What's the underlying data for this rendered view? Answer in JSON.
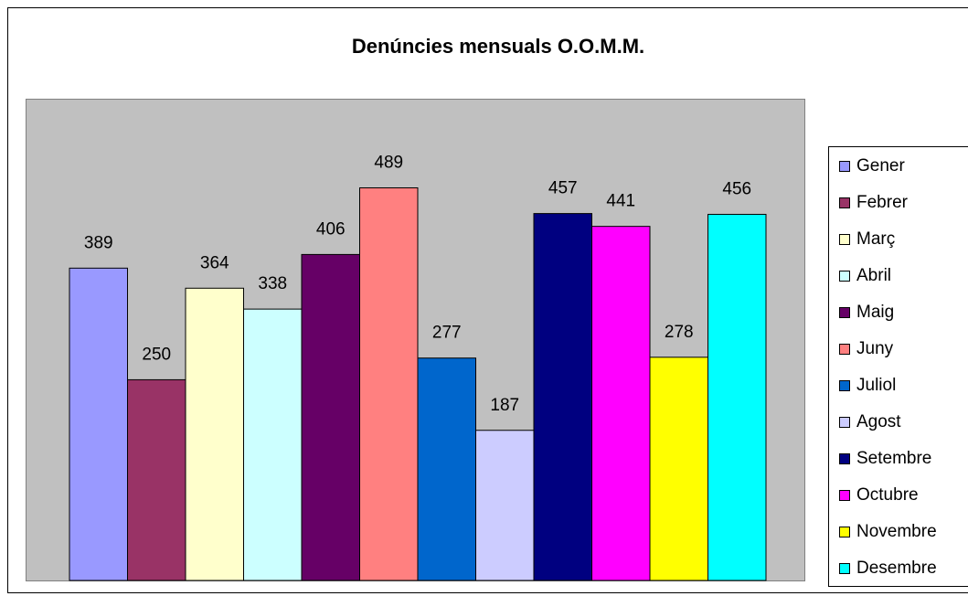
{
  "chart_data": {
    "type": "bar",
    "title": "Denúncies mensuals O.O.M.M.",
    "categories": [
      "Gener",
      "Febrer",
      "Març",
      "Abril",
      "Maig",
      "Juny",
      "Juliol",
      "Agost",
      "Setembre",
      "Octubre",
      "Novembre",
      "Desembre"
    ],
    "values": [
      389,
      250,
      364,
      338,
      406,
      489,
      277,
      187,
      457,
      441,
      278,
      456
    ],
    "colors": [
      "#9999ff",
      "#993366",
      "#ffffcc",
      "#ccffff",
      "#660066",
      "#ff8080",
      "#0066cc",
      "#ccccff",
      "#000080",
      "#ff00ff",
      "#ffff00",
      "#00ffff"
    ],
    "ylim": [
      0,
      600
    ],
    "legend": "right"
  }
}
